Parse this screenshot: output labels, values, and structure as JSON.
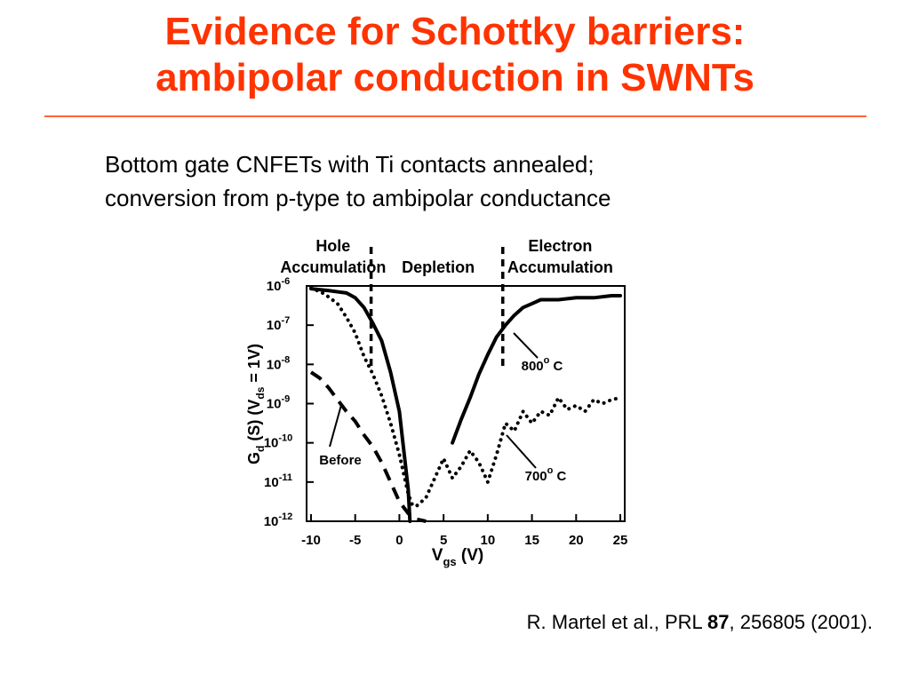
{
  "slide": {
    "title_line1": "Evidence for Schottky barriers:",
    "title_line2": "ambipolar conduction in SWNTs",
    "subtitle_line1": "Bottom gate CNFETs with Ti contacts annealed;",
    "subtitle_line2": "conversion from p-type to ambipolar conductance",
    "citation_prefix": "R. Martel et al., PRL ",
    "citation_volume": "87",
    "citation_suffix": ", 256805 (2001).",
    "colors": {
      "title": "#ff3300",
      "rule": "#ff6633",
      "text": "#000000"
    }
  },
  "chart_data": {
    "type": "line",
    "ylabel": {
      "main": "G",
      "sub1": "d",
      "mid": " (S) (V",
      "sub2": "ds",
      "end": " = 1V)"
    },
    "xlabel": {
      "main": "V",
      "sub": "gs",
      "end": " (V)"
    },
    "xlim": [
      -10.5,
      25.5
    ],
    "ylim_exponent": [
      -12,
      -6
    ],
    "y_scale": "log",
    "x_ticks": [
      -10,
      -5,
      0,
      5,
      10,
      15,
      20,
      25
    ],
    "x_tick_labels": [
      "-10",
      "-5",
      "0",
      "5",
      "10",
      "15",
      "20",
      "25"
    ],
    "y_ticks": [
      {
        "exp": -6,
        "base": "10",
        "sup": "-6"
      },
      {
        "exp": -7,
        "base": "10",
        "sup": "-7"
      },
      {
        "exp": -8,
        "base": "10",
        "sup": "-8"
      },
      {
        "exp": -9,
        "base": "10",
        "sup": "-9"
      },
      {
        "exp": -10,
        "base": "10",
        "sup": "-10"
      },
      {
        "exp": -11,
        "base": "10",
        "sup": "-11"
      },
      {
        "exp": -12,
        "base": "10",
        "sup": "-12"
      }
    ],
    "regions": [
      {
        "line1": "Hole",
        "line2": "Accumulation",
        "x_center": -7.5
      },
      {
        "line1": "",
        "line2": "Depletion",
        "x_center": 4.4
      },
      {
        "line1": "Electron",
        "line2": "Accumulation",
        "x_center": 18.2
      }
    ],
    "region_boundaries": [
      -3.2,
      11.7
    ],
    "series": [
      {
        "style": "solid",
        "label": "800",
        "label_sup": "o",
        "label_end": " C",
        "points": [
          [
            -10,
            -6.07
          ],
          [
            -8,
            -6.12
          ],
          [
            -6,
            -6.18
          ],
          [
            -5,
            -6.3
          ],
          [
            -4,
            -6.55
          ],
          [
            -3,
            -6.95
          ],
          [
            -2,
            -7.4
          ],
          [
            -1,
            -8.2
          ],
          [
            0,
            -9.2
          ],
          [
            0.5,
            -10.2
          ],
          [
            1,
            -11.2
          ],
          [
            1.2,
            -12
          ],
          [
            6,
            -10
          ],
          [
            7,
            -9.4
          ],
          [
            8,
            -8.85
          ],
          [
            9,
            -8.25
          ],
          [
            10,
            -7.75
          ],
          [
            11,
            -7.3
          ],
          [
            12,
            -7
          ],
          [
            13,
            -6.75
          ],
          [
            14,
            -6.55
          ],
          [
            15,
            -6.45
          ],
          [
            16,
            -6.35
          ],
          [
            18,
            -6.35
          ],
          [
            20,
            -6.3
          ],
          [
            22,
            -6.3
          ],
          [
            24,
            -6.25
          ],
          [
            25,
            -6.25
          ]
        ]
      },
      {
        "style": "dotted",
        "label": "700",
        "label_sup": "o",
        "label_end": " C",
        "points": [
          [
            -10,
            -6.05
          ],
          [
            -8.5,
            -6.2
          ],
          [
            -7,
            -6.45
          ],
          [
            -6,
            -6.8
          ],
          [
            -5,
            -7.2
          ],
          [
            -4,
            -7.8
          ],
          [
            -3,
            -8.25
          ],
          [
            -2,
            -8.8
          ],
          [
            -1,
            -9.5
          ],
          [
            0,
            -10.3
          ],
          [
            1,
            -11.3
          ],
          [
            1.5,
            -11.6
          ],
          [
            2,
            -11.6
          ],
          [
            3,
            -11.4
          ],
          [
            4,
            -10.9
          ],
          [
            5,
            -10.4
          ],
          [
            6,
            -10.9
          ],
          [
            7,
            -10.6
          ],
          [
            8,
            -10.2
          ],
          [
            9,
            -10.5
          ],
          [
            10,
            -11
          ],
          [
            11,
            -10.3
          ],
          [
            12,
            -9.5
          ],
          [
            13,
            -9.7
          ],
          [
            14,
            -9.2
          ],
          [
            15,
            -9.5
          ],
          [
            16,
            -9.2
          ],
          [
            17,
            -9.3
          ],
          [
            18,
            -8.85
          ],
          [
            19,
            -9.15
          ],
          [
            20,
            -9.05
          ],
          [
            21,
            -9.2
          ],
          [
            22,
            -8.9
          ],
          [
            23,
            -9.0
          ],
          [
            24,
            -8.9
          ],
          [
            25,
            -8.85
          ]
        ]
      },
      {
        "style": "dashed",
        "label": "Before",
        "label_sup": "",
        "label_end": "",
        "points": [
          [
            -10,
            -8.2
          ],
          [
            -9,
            -8.35
          ],
          [
            -8,
            -8.6
          ],
          [
            -7,
            -8.9
          ],
          [
            -6,
            -9.2
          ],
          [
            -5,
            -9.45
          ],
          [
            -4,
            -9.8
          ],
          [
            -3,
            -10.1
          ],
          [
            -2,
            -10.5
          ],
          [
            -1,
            -11
          ],
          [
            0,
            -11.5
          ],
          [
            1,
            -11.8
          ],
          [
            2,
            -11.95
          ],
          [
            3,
            -12
          ]
        ]
      }
    ],
    "grid": false
  }
}
